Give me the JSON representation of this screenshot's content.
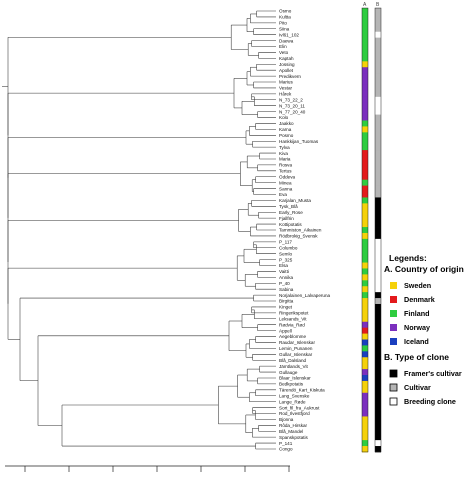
{
  "taxa": [
    {
      "name": "Osmo",
      "country": "Finland",
      "clone": "Cultivar"
    },
    {
      "name": "Kultta",
      "country": "Finland",
      "clone": "Cultivar"
    },
    {
      "name": "Pito",
      "country": "Finland",
      "clone": "Cultivar"
    },
    {
      "name": "Siina",
      "country": "Finland",
      "clone": "Cultivar"
    },
    {
      "name": "Ivl61_102",
      "country": "Finland",
      "clone": "Breeding clone"
    },
    {
      "name": "Daewa",
      "country": "Finland",
      "clone": "Cultivar"
    },
    {
      "name": "Elin",
      "country": "Finland",
      "clone": "Cultivar"
    },
    {
      "name": "Veto",
      "country": "Finland",
      "clone": "Cultivar"
    },
    {
      "name": "Kaptah",
      "country": "Finland",
      "clone": "Cultivar"
    },
    {
      "name": "Jossing",
      "country": "Sweden",
      "clone": "Cultivar"
    },
    {
      "name": "Apollet",
      "country": "Norway",
      "clone": "Cultivar"
    },
    {
      "name": "Predikvern",
      "country": "Norway",
      "clone": "Cultivar"
    },
    {
      "name": "Marius",
      "country": "Norway",
      "clone": "Cultivar"
    },
    {
      "name": "Vestar",
      "country": "Norway",
      "clone": "Cultivar"
    },
    {
      "name": "Hårek",
      "country": "Norway",
      "clone": "Cultivar"
    },
    {
      "name": "N_73_22_2",
      "country": "Norway",
      "clone": "Breeding clone"
    },
    {
      "name": "N_73_20_11",
      "country": "Norway",
      "clone": "Breeding clone"
    },
    {
      "name": "N_77_20_40",
      "country": "Norway",
      "clone": "Breeding clone"
    },
    {
      "name": "Kolo",
      "country": "Norway",
      "clone": "Cultivar"
    },
    {
      "name": "Jaakko",
      "country": "Finland",
      "clone": "Cultivar"
    },
    {
      "name": "Karna",
      "country": "Sweden",
      "clone": "Cultivar"
    },
    {
      "name": "Posmo",
      "country": "Finland",
      "clone": "Cultivar"
    },
    {
      "name": "Hankkijan_Tuomas",
      "country": "Finland",
      "clone": "Cultivar"
    },
    {
      "name": "Tylva",
      "country": "Finland",
      "clone": "Cultivar"
    },
    {
      "name": "Kiva",
      "country": "Denmark",
      "clone": "Cultivar"
    },
    {
      "name": "Maria",
      "country": "Denmark",
      "clone": "Cultivar"
    },
    {
      "name": "Rosva",
      "country": "Denmark",
      "clone": "Cultivar"
    },
    {
      "name": "Tertus",
      "country": "Denmark",
      "clone": "Cultivar"
    },
    {
      "name": "Oddeva",
      "country": "Denmark",
      "clone": "Cultivar"
    },
    {
      "name": "Minea",
      "country": "Finland",
      "clone": "Cultivar"
    },
    {
      "name": "Sanna",
      "country": "Denmark",
      "clone": "Cultivar"
    },
    {
      "name": "Eva",
      "country": "Denmark",
      "clone": "Cultivar"
    },
    {
      "name": "Karjalan_Musta",
      "country": "Finland",
      "clone": "Framer's cultivar"
    },
    {
      "name": "Tysk_Blå",
      "country": "Sweden",
      "clone": "Framer's cultivar"
    },
    {
      "name": "Early_Rose",
      "country": "Sweden",
      "clone": "Framer's cultivar"
    },
    {
      "name": "Fjallfrin",
      "country": "Sweden",
      "clone": "Framer's cultivar"
    },
    {
      "name": "Kottipotatis",
      "country": "Sweden",
      "clone": "Framer's cultivar"
    },
    {
      "name": "Tammiston_Aikainen",
      "country": "Finland",
      "clone": "Framer's cultivar"
    },
    {
      "name": "Rödbrokig_Svensk",
      "country": "Sweden",
      "clone": "Framer's cultivar"
    },
    {
      "name": "P_117",
      "country": "Finland",
      "clone": "Breeding clone"
    },
    {
      "name": "Columbo",
      "country": "Finland",
      "clone": "Breeding clone"
    },
    {
      "name": "Semlo",
      "country": "Finland",
      "clone": "Breeding clone"
    },
    {
      "name": "P_325",
      "country": "Finland",
      "clone": "Breeding clone"
    },
    {
      "name": "Elsa",
      "country": "Sweden",
      "clone": "Breeding clone"
    },
    {
      "name": "Vaitti",
      "country": "Finland",
      "clone": "Breeding clone"
    },
    {
      "name": "Annika",
      "country": "Sweden",
      "clone": "Breeding clone"
    },
    {
      "name": "P_40",
      "country": "Finland",
      "clone": "Breeding clone"
    },
    {
      "name": "Sabina",
      "country": "Sweden",
      "clone": "Breeding clone"
    },
    {
      "name": "Norjalainen_Lalvaperuna",
      "country": "Finland",
      "clone": "Framer's cultivar"
    },
    {
      "name": "Birgitta",
      "country": "Sweden",
      "clone": "Cultivar"
    },
    {
      "name": "Kinget",
      "country": "Sweden",
      "clone": "Framer's cultivar"
    },
    {
      "name": "Ringerikspotet",
      "country": "Sweden",
      "clone": "Framer's cultivar"
    },
    {
      "name": "Leksands_Vit",
      "country": "Sweden",
      "clone": "Framer's cultivar"
    },
    {
      "name": "Rødvia_Rød",
      "country": "Norway",
      "clone": "Framer's cultivar"
    },
    {
      "name": "Appell",
      "country": "Denmark",
      "clone": "Framer's cultivar"
    },
    {
      "name": "Aegeblomme",
      "country": "Sweden",
      "clone": "Framer's cultivar"
    },
    {
      "name": "Raudar_Islenskar",
      "country": "Iceland",
      "clone": "Framer's cultivar"
    },
    {
      "name": "Lemin_Punanen",
      "country": "Finland",
      "clone": "Framer's cultivar"
    },
    {
      "name": "Gullar_Islenskar",
      "country": "Iceland",
      "clone": "Framer's cultivar"
    },
    {
      "name": "Blå_Dalsland",
      "country": "Sweden",
      "clone": "Framer's cultivar"
    },
    {
      "name": "Jämtlands_Vit",
      "country": "Sweden",
      "clone": "Framer's cultivar"
    },
    {
      "name": "Gullauge",
      "country": "Norway",
      "clone": "Framer's cultivar"
    },
    {
      "name": "Blaar_Islenskar",
      "country": "Iceland",
      "clone": "Framer's cultivar"
    },
    {
      "name": "Bedkpotatis",
      "country": "Sweden",
      "clone": "Framer's cultivar"
    },
    {
      "name": "Tärendö_Kart_Kiskuta",
      "country": "Sweden",
      "clone": "Framer's cultivar"
    },
    {
      "name": "Lang_Svenske",
      "country": "Norway",
      "clone": "Framer's cultivar"
    },
    {
      "name": "Lange_Røde",
      "country": "Norway",
      "clone": "Framer's cultivar"
    },
    {
      "name": "Sort_fil_fra_Aukrust",
      "country": "Norway",
      "clone": "Framer's cultivar"
    },
    {
      "name": "Rod_Ilvestfjord",
      "country": "Norway",
      "clone": "Framer's cultivar"
    },
    {
      "name": "Bjonna",
      "country": "Sweden",
      "clone": "Framer's cultivar"
    },
    {
      "name": "Rôda_Hirskar",
      "country": "Sweden",
      "clone": "Framer's cultivar"
    },
    {
      "name": "Blå_Mandel",
      "country": "Sweden",
      "clone": "Framer's cultivar"
    },
    {
      "name": "Spanskpotatis",
      "country": "Sweden",
      "clone": "Framer's cultivar"
    },
    {
      "name": "P_141",
      "country": "Finland",
      "clone": "Breeding clone"
    },
    {
      "name": "Congo",
      "country": "Sweden",
      "clone": "Framer's cultivar"
    }
  ],
  "legend": {
    "title": "Legends:",
    "country_heading": "A. Country of origin",
    "countries": [
      {
        "label": "Sweden",
        "color": "#f5d10a"
      },
      {
        "label": "Denmark",
        "color": "#e31a1c"
      },
      {
        "label": "Finland",
        "color": "#2ecc40"
      },
      {
        "label": "Norway",
        "color": "#7b2fbe"
      },
      {
        "label": "Iceland",
        "color": "#1a3fbf"
      }
    ],
    "clone_heading": "B. Type of clone",
    "clones": [
      {
        "label": "Framer's cultivar",
        "color": "#000000"
      },
      {
        "label": "Cultivar",
        "color": "#b5b5b5"
      },
      {
        "label": "Breeding clone",
        "color": "#ffffff"
      }
    ]
  },
  "strip_headers": {
    "country": "A",
    "clone": "B"
  }
}
